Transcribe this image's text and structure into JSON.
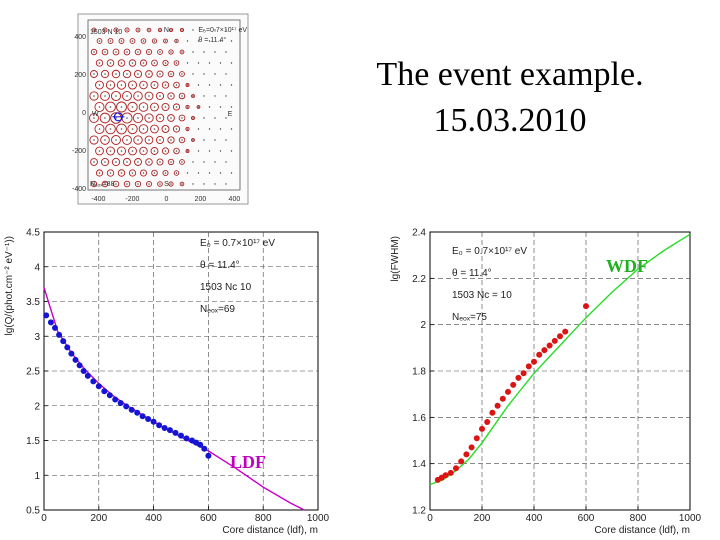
{
  "slide": {
    "title_line1": "The event example.",
    "title_line2": "15.03.2010"
  },
  "chart_data": [
    {
      "type": "scatter",
      "name": "detector-map",
      "info": {
        "line1": "1503 N 10",
        "line2": "E₀=0.7×10¹⁷ eV",
        "line3": "θ = 11.4°",
        "line4": "Nₑₒₓ=88"
      },
      "dir_labels": {
        "north": "N",
        "east": "E",
        "west": "W",
        "south": "S"
      },
      "x_ticks": [
        "-400",
        "-200",
        "0",
        "200",
        "400"
      ],
      "y_ticks": [
        "400",
        "200",
        "0",
        "-200",
        "-400"
      ],
      "xlim": [
        -500,
        500
      ],
      "ylim": [
        -500,
        500
      ]
    },
    {
      "type": "scatter",
      "name": "LDF",
      "tag": "LDF",
      "ylabel": "lg(Q/(phot.cm⁻² eV⁻¹))",
      "xlabel": "Core distance (ldf), m",
      "info": {
        "line1": "E₀ = 0.7×10¹⁷ eV",
        "line2": "θ = 11.4°",
        "line3": "1503 Nc 10",
        "line4": "Nₑₒₓ=69"
      },
      "xlim": [
        0,
        1000
      ],
      "ylim": [
        0.5,
        4.5
      ],
      "x_ticks": [
        "0",
        "200",
        "400",
        "600",
        "800",
        "1000"
      ],
      "y_ticks": [
        "0.5",
        "1",
        "1.5",
        "2",
        "2.5",
        "3",
        "3.5",
        "4",
        "4.5"
      ],
      "grid_x": [
        200,
        400,
        600,
        800
      ],
      "grid_y": [
        1,
        1.5,
        2,
        2.5,
        3,
        3.5,
        4
      ],
      "colors": {
        "points": "#1414d2",
        "fit": "#c800c8",
        "tag": "#c000c0"
      },
      "series": [
        {
          "x": [
            8,
            25,
            40,
            55,
            70,
            85,
            100,
            115,
            130,
            145,
            160,
            180,
            200,
            220,
            240,
            260,
            280,
            300,
            320,
            340,
            360,
            380,
            400,
            420,
            440,
            460,
            480,
            500,
            520,
            540,
            555,
            570,
            585,
            600
          ],
          "y": [
            3.3,
            3.2,
            3.12,
            3.02,
            2.93,
            2.84,
            2.75,
            2.66,
            2.58,
            2.5,
            2.43,
            2.35,
            2.28,
            2.21,
            2.15,
            2.09,
            2.04,
            1.99,
            1.94,
            1.9,
            1.85,
            1.81,
            1.77,
            1.72,
            1.68,
            1.65,
            1.61,
            1.57,
            1.53,
            1.5,
            1.47,
            1.44,
            1.38,
            1.28
          ]
        }
      ],
      "fit": {
        "x": [
          0,
          50,
          100,
          150,
          200,
          250,
          300,
          400,
          500,
          600,
          700,
          800,
          900,
          950
        ],
        "y": [
          3.7,
          3.07,
          2.76,
          2.52,
          2.32,
          2.15,
          2.01,
          1.77,
          1.55,
          1.35,
          1.1,
          0.83,
          0.6,
          0.5
        ]
      }
    },
    {
      "type": "scatter",
      "name": "WDF",
      "tag": "WDF",
      "ylabel": "lg(FWHM)",
      "xlabel": "Core distance (ldf), m",
      "info": {
        "line1": "E₀ = 0.7×10¹⁷ eV",
        "line2": "θ = 11.4°",
        "line3": "1503 Nc = 10",
        "line4": "Nₑₒₓ=75"
      },
      "xlim": [
        0,
        1000
      ],
      "ylim": [
        1.2,
        2.4
      ],
      "x_ticks": [
        "0",
        "200",
        "400",
        "600",
        "800",
        "1000"
      ],
      "y_ticks": [
        "1.2",
        "1.4",
        "1.6",
        "1.8",
        "2",
        "2.2",
        "2.4"
      ],
      "grid_x": [
        200,
        400,
        600,
        800
      ],
      "grid_y": [
        1.4,
        1.6,
        1.8,
        2,
        2.2
      ],
      "colors": {
        "points": "#dc1414",
        "fit": "#28dc28",
        "tag": "#20b020"
      },
      "series": [
        {
          "x": [
            30,
            45,
            60,
            80,
            100,
            120,
            140,
            160,
            180,
            200,
            220,
            240,
            260,
            280,
            300,
            320,
            340,
            360,
            380,
            400,
            420,
            440,
            460,
            480,
            500,
            520,
            600
          ],
          "y": [
            1.33,
            1.34,
            1.35,
            1.36,
            1.38,
            1.41,
            1.44,
            1.47,
            1.51,
            1.55,
            1.58,
            1.62,
            1.65,
            1.68,
            1.71,
            1.74,
            1.77,
            1.79,
            1.82,
            1.84,
            1.87,
            1.89,
            1.91,
            1.93,
            1.95,
            1.97,
            2.08
          ]
        }
      ],
      "fit": {
        "x": [
          0,
          50,
          100,
          150,
          200,
          250,
          300,
          350,
          400,
          450,
          500,
          600,
          700,
          800,
          900,
          1000
        ],
        "y": [
          1.31,
          1.33,
          1.37,
          1.42,
          1.49,
          1.57,
          1.65,
          1.72,
          1.79,
          1.85,
          1.91,
          2.03,
          2.14,
          2.24,
          2.32,
          2.39
        ]
      }
    }
  ]
}
